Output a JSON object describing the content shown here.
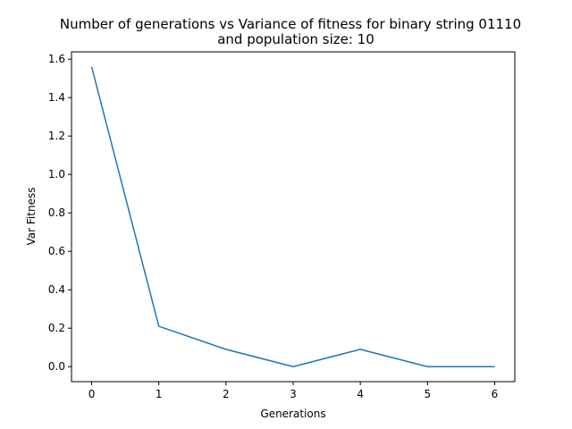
{
  "chart_data": {
    "type": "line",
    "title_lines": [
      "Number of generations vs Variance of fitness for binary string 01110",
      "and population size: 10"
    ],
    "xlabel": "Generations",
    "ylabel": "Var Fitness",
    "x": [
      0,
      1,
      2,
      3,
      4,
      5,
      6
    ],
    "series": [
      {
        "values": [
          1.56,
          0.21,
          0.09,
          0.0,
          0.09,
          0.0,
          0.0
        ],
        "color": "#1f77b4"
      }
    ],
    "xlim": [
      -0.3,
      6.3
    ],
    "ylim": [
      -0.078,
      1.638
    ],
    "xticks": [
      0,
      1,
      2,
      3,
      4,
      5,
      6
    ],
    "xtick_labels": [
      "0",
      "1",
      "2",
      "3",
      "4",
      "5",
      "6"
    ],
    "yticks": [
      0.0,
      0.2,
      0.4,
      0.6,
      0.8,
      1.0,
      1.2,
      1.4,
      1.6
    ],
    "ytick_labels": [
      "0.0",
      "0.2",
      "0.4",
      "0.6",
      "0.8",
      "1.0",
      "1.2",
      "1.4",
      "1.6"
    ],
    "grid": false,
    "legend": "none"
  }
}
